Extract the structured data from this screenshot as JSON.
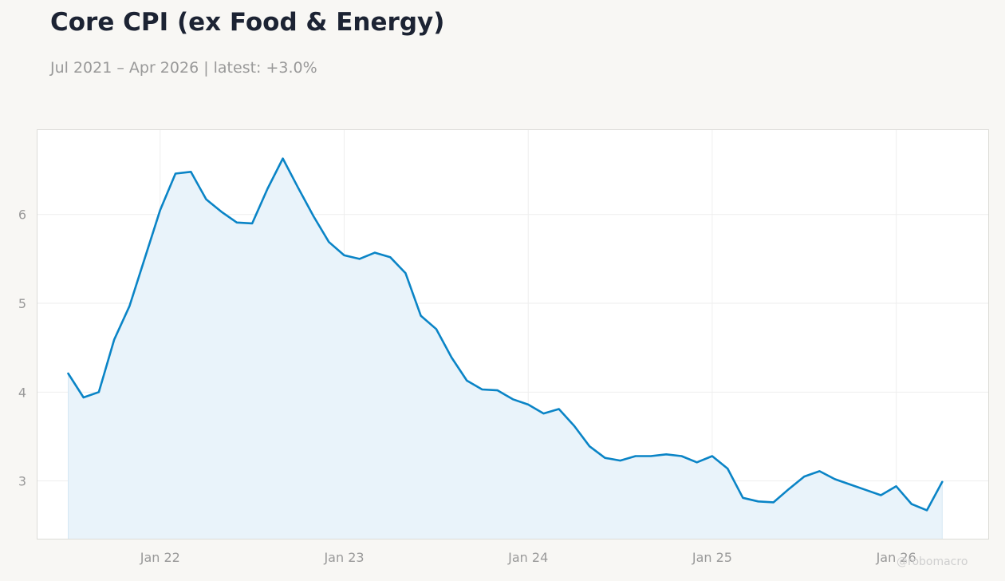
{
  "header": {
    "title": "Core CPI (ex Food & Energy)",
    "subtitle": "Jul 2021 – Apr 2026 | latest: +3.0%"
  },
  "credit": "@robomacro",
  "colors": {
    "line": "#0a84c6",
    "fill": "#e9f3fa",
    "background": "#f8f7f4",
    "plot_background": "#ffffff",
    "grid": "#eeeeee",
    "tick_text": "#999999",
    "title": "#1c2333"
  },
  "chart_data": {
    "type": "area",
    "title": "Core CPI (ex Food & Energy)",
    "subtitle": "Jul 2021 – Apr 2026 | latest: +3.0%",
    "xlabel": "",
    "ylabel": "",
    "xlim": [
      "2021-05",
      "2026-07"
    ],
    "ylim": [
      2.35,
      6.95
    ],
    "grid": true,
    "legend": "none",
    "x_ticks": [
      {
        "x": "2022-01",
        "label": "Jan 22"
      },
      {
        "x": "2023-01",
        "label": "Jan 23"
      },
      {
        "x": "2024-01",
        "label": "Jan 24"
      },
      {
        "x": "2025-01",
        "label": "Jan 25"
      },
      {
        "x": "2026-01",
        "label": "Jan 26"
      }
    ],
    "y_ticks": [
      3,
      4,
      5,
      6
    ],
    "x": [
      "2021-07",
      "2021-08",
      "2021-09",
      "2021-10",
      "2021-11",
      "2021-12",
      "2022-01",
      "2022-02",
      "2022-03",
      "2022-04",
      "2022-05",
      "2022-06",
      "2022-07",
      "2022-08",
      "2022-09",
      "2022-10",
      "2022-11",
      "2022-12",
      "2023-01",
      "2023-02",
      "2023-03",
      "2023-04",
      "2023-05",
      "2023-06",
      "2023-07",
      "2023-08",
      "2023-09",
      "2023-10",
      "2023-11",
      "2023-12",
      "2024-01",
      "2024-02",
      "2024-03",
      "2024-04",
      "2024-05",
      "2024-06",
      "2024-07",
      "2024-08",
      "2024-09",
      "2024-10",
      "2024-11",
      "2024-12",
      "2025-01",
      "2025-02",
      "2025-03",
      "2025-04",
      "2025-05",
      "2025-06",
      "2025-07",
      "2025-08",
      "2025-09",
      "2025-10",
      "2025-11",
      "2025-12",
      "2026-01",
      "2026-02",
      "2026-03",
      "2026-04"
    ],
    "values": [
      4.21,
      3.94,
      4.0,
      4.59,
      4.97,
      5.51,
      6.05,
      6.46,
      6.48,
      6.17,
      6.03,
      5.91,
      5.9,
      6.29,
      6.63,
      6.3,
      5.98,
      5.69,
      5.54,
      5.5,
      5.57,
      5.52,
      5.34,
      4.86,
      4.71,
      4.39,
      4.13,
      4.03,
      4.02,
      3.92,
      3.86,
      3.76,
      3.81,
      3.62,
      3.39,
      3.26,
      3.23,
      3.28,
      3.28,
      3.3,
      3.28,
      3.21,
      3.28,
      3.14,
      2.81,
      2.77,
      2.76,
      2.91,
      3.05,
      3.11,
      3.02,
      2.96,
      2.9,
      2.84,
      2.94,
      2.74,
      2.67,
      2.99
    ]
  }
}
